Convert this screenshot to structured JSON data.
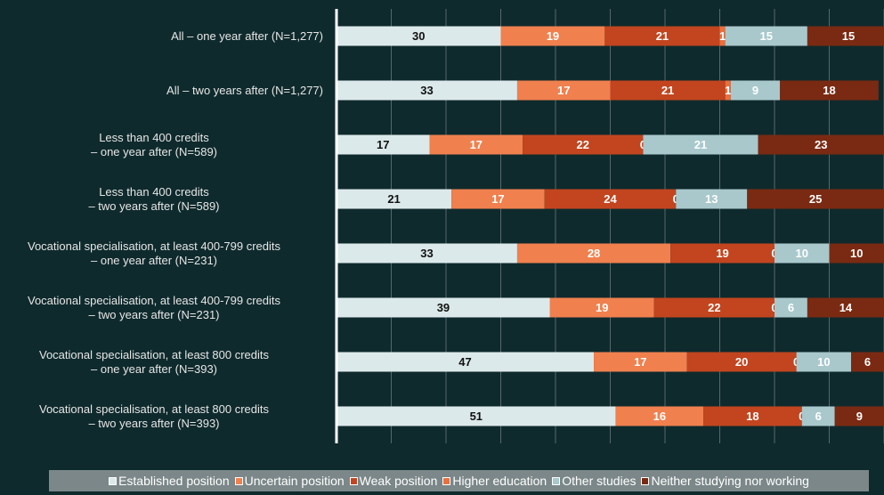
{
  "chart_data": {
    "type": "stacked-bar-horizontal",
    "categories": [
      "All – one year after (N=1,277)",
      "All – two years after (N=1,277)",
      "Less than 400 credits\n– one year after (N=589)",
      "Less than 400 credits\n– two years after (N=589)",
      "Vocational specialisation, at least 400-799 credits\n– one year after (N=231)",
      "Vocational specialisation, at least 400-799 credits\n– two years after (N=231)",
      "Vocational specialisation, at least 800 credits\n– one year after (N=393)",
      "Vocational specialisation, at least 800 credits\n– two years after (N=393)"
    ],
    "series": [
      {
        "name": "Established position",
        "color": "#dce9ea",
        "values": [
          30,
          33,
          17,
          21,
          33,
          39,
          47,
          51
        ]
      },
      {
        "name": "Uncertain position",
        "color": "#f0804e",
        "values": [
          19,
          17,
          17,
          17,
          28,
          19,
          17,
          16
        ]
      },
      {
        "name": "Weak position",
        "color": "#c2451f",
        "values": [
          21,
          21,
          22,
          24,
          19,
          22,
          20,
          18
        ]
      },
      {
        "name": "Higher education",
        "color": "#e8703f",
        "values": [
          1,
          1,
          0,
          0,
          0,
          0,
          0,
          0
        ]
      },
      {
        "name": "Other studies",
        "color": "#a8c8cc",
        "values": [
          15,
          9,
          21,
          13,
          10,
          6,
          10,
          6
        ]
      },
      {
        "name": "Neither studying nor working",
        "color": "#7a2a12",
        "values": [
          15,
          18,
          23,
          25,
          10,
          14,
          6,
          9
        ]
      }
    ],
    "xlim": [
      0,
      100
    ],
    "xticks": [
      0,
      10,
      20,
      30,
      40,
      50,
      60,
      70,
      80,
      90,
      100
    ],
    "grid": true,
    "legend": "bottom"
  }
}
